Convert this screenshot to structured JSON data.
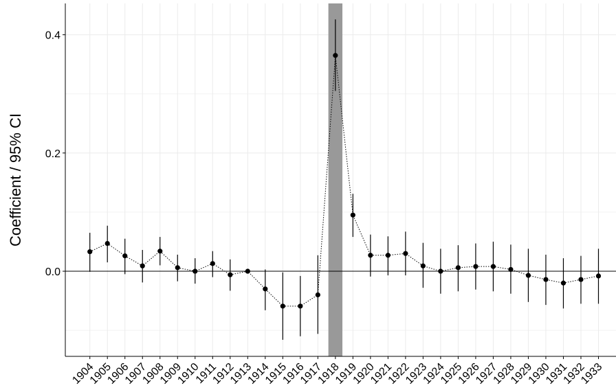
{
  "chart_data": {
    "type": "coefplot",
    "ylabel": "Coefficient / 95% CI",
    "x": [
      1904,
      1905,
      1906,
      1907,
      1908,
      1909,
      1910,
      1911,
      1912,
      1913,
      1914,
      1915,
      1916,
      1917,
      1918,
      1919,
      1920,
      1921,
      1922,
      1923,
      1924,
      1925,
      1926,
      1927,
      1928,
      1929,
      1930,
      1931,
      1932,
      1933
    ],
    "series": [
      {
        "color": "#000000",
        "values": [
          0.033,
          0.047,
          0.026,
          0.009,
          0.034,
          0.006,
          0.0,
          0.013,
          -0.006,
          0.0,
          -0.03,
          -0.059,
          -0.059,
          -0.04,
          0.365,
          0.095,
          0.027,
          0.027,
          0.03,
          0.009,
          0.0,
          0.006,
          0.008,
          0.008,
          0.003,
          -0.007,
          -0.014,
          -0.02,
          -0.014,
          -0.008
        ],
        "lower": [
          -0.001,
          0.015,
          -0.005,
          -0.019,
          0.01,
          -0.017,
          -0.021,
          -0.01,
          -0.033,
          -0.002,
          -0.066,
          -0.116,
          -0.11,
          -0.106,
          0.305,
          0.058,
          -0.009,
          -0.007,
          -0.007,
          -0.028,
          -0.038,
          -0.034,
          -0.031,
          -0.034,
          -0.038,
          -0.052,
          -0.057,
          -0.063,
          -0.055,
          -0.055
        ],
        "upper": [
          0.065,
          0.077,
          0.055,
          0.036,
          0.058,
          0.028,
          0.022,
          0.034,
          0.02,
          0.002,
          0.003,
          -0.002,
          -0.008,
          0.027,
          0.426,
          0.131,
          0.062,
          0.059,
          0.067,
          0.048,
          0.038,
          0.044,
          0.047,
          0.05,
          0.045,
          0.038,
          0.028,
          0.022,
          0.026,
          0.038
        ]
      }
    ],
    "xlim": [
      1902.6,
      1934.0
    ],
    "xticks": [
      1904,
      1905,
      1906,
      1907,
      1908,
      1909,
      1910,
      1911,
      1912,
      1913,
      1914,
      1915,
      1916,
      1917,
      1918,
      1919,
      1920,
      1921,
      1922,
      1923,
      1924,
      1925,
      1926,
      1927,
      1928,
      1929,
      1930,
      1931,
      1932,
      1933
    ],
    "ylim": [
      -0.144,
      0.453
    ],
    "yticks": [
      {
        "value": 0,
        "label": "0.0"
      },
      {
        "value": 0.2,
        "label": "0.2"
      },
      {
        "value": 0.4,
        "label": "0.4"
      }
    ],
    "minor_yticks": [
      -0.1,
      0.1,
      0.3
    ],
    "grid": true,
    "hline": 0,
    "highlight_x": [
      1917.6,
      1918.4
    ],
    "highlight_color": "#999999"
  }
}
